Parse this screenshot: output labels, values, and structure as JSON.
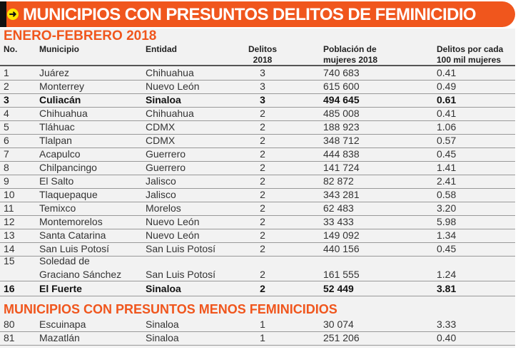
{
  "banner": {
    "title": "MUNICIPIOS CON PRESUNTOS DELITOS DE FEMINICIDIO",
    "icon": "arrow-right-icon"
  },
  "subtitle": "ENERO-FEBRERO 2018",
  "columns": {
    "no": "No.",
    "municipio": "Municipio",
    "entidad": "Entidad",
    "delitos1": "Delitos",
    "delitos2": "2018",
    "poblacion1": "Población de",
    "poblacion2": "mujeres 2018",
    "tasa1": "Delitos por cada",
    "tasa2": "100 mil mujeres"
  },
  "rows": [
    {
      "no": "1",
      "municipio": "Juárez",
      "entidad": "Chihuahua",
      "delitos": "3",
      "poblacion": "740 683",
      "tasa": "0.41"
    },
    {
      "no": "2",
      "municipio": "Monterrey",
      "entidad": "Nuevo León",
      "delitos": "3",
      "poblacion": "615 600",
      "tasa": "0.49"
    },
    {
      "no": "3",
      "municipio": "Culiacán",
      "entidad": "Sinaloa",
      "delitos": "3",
      "poblacion": "494 645",
      "tasa": "0.61"
    },
    {
      "no": "4",
      "municipio": "Chihuahua",
      "entidad": "Chihuahua",
      "delitos": "2",
      "poblacion": "485 008",
      "tasa": "0.41"
    },
    {
      "no": "5",
      "municipio": "Tláhuac",
      "entidad": "CDMX",
      "delitos": "2",
      "poblacion": "188 923",
      "tasa": "1.06"
    },
    {
      "no": "6",
      "municipio": "Tlalpan",
      "entidad": "CDMX",
      "delitos": "2",
      "poblacion": "348 712",
      "tasa": "0.57"
    },
    {
      "no": "7",
      "municipio": "Acapulco",
      "entidad": "Guerrero",
      "delitos": "2",
      "poblacion": "444 838",
      "tasa": "0.45"
    },
    {
      "no": "8",
      "municipio": "Chilpancingo",
      "entidad": "Guerrero",
      "delitos": "2",
      "poblacion": "141 724",
      "tasa": "1.41"
    },
    {
      "no": "9",
      "municipio": "El Salto",
      "entidad": "Jalisco",
      "delitos": "2",
      "poblacion": "82 872",
      "tasa": "2.41"
    },
    {
      "no": "10",
      "municipio": "Tlaquepaque",
      "entidad": "Jalisco",
      "delitos": "2",
      "poblacion": "343 281",
      "tasa": "0.58"
    },
    {
      "no": "11",
      "municipio": "Temixco",
      "entidad": "Morelos",
      "delitos": "2",
      "poblacion": "62 483",
      "tasa": "3.20"
    },
    {
      "no": "12",
      "municipio": "Montemorelos",
      "entidad": "Nuevo León",
      "delitos": "2",
      "poblacion": "33 433",
      "tasa": "5.98"
    },
    {
      "no": "13",
      "municipio": "Santa Catarina",
      "entidad": "Nuevo León",
      "delitos": "2",
      "poblacion": "149 092",
      "tasa": "1.34"
    },
    {
      "no": "14",
      "municipio": "San Luis Potosí",
      "entidad": "San Luis Potosí",
      "delitos": "2",
      "poblacion": "440 156",
      "tasa": "0.45"
    }
  ],
  "row15": {
    "no": "15",
    "municipio1": "Soledad de",
    "municipio2": "Graciano Sánchez",
    "entidad": "San Luis Potosí",
    "delitos": "2",
    "poblacion": "161 555",
    "tasa": "1.24"
  },
  "row16": {
    "no": "16",
    "municipio": "El Fuerte",
    "entidad": "Sinaloa",
    "delitos": "2",
    "poblacion": "52 449",
    "tasa": "3.81"
  },
  "section2": "MUNICIPIOS CON PRESUNTOS MENOS FEMINICIDIOS",
  "rows2": [
    {
      "no": "80",
      "municipio": "Escuinapa",
      "entidad": "Sinaloa",
      "delitos": "1",
      "poblacion": "30 074",
      "tasa": "3.33"
    },
    {
      "no": "81",
      "municipio": "Mazatlán",
      "entidad": "Sinaloa",
      "delitos": "1",
      "poblacion": "251 206",
      "tasa": "0.40"
    }
  ],
  "colors": {
    "accent": "#f0561d",
    "panel": "#f2f2f2"
  }
}
